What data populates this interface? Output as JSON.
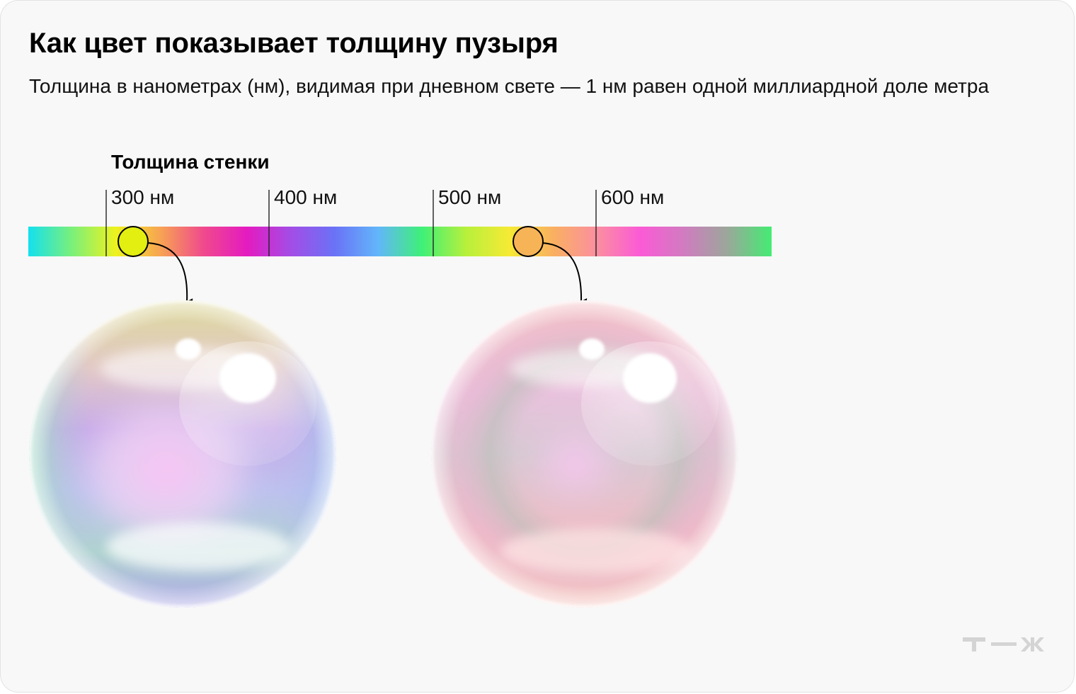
{
  "header": {
    "title": "Как цвет показывает толщину пузыря",
    "subtitle": "Толщина в нанометрах (нм), видимая при дневном свете — 1 нм равен одной миллиардной доле метра"
  },
  "scale": {
    "label": "Толщина стенки",
    "ticks": [
      "300 нм",
      "400 нм",
      "500 нм",
      "600 нм"
    ],
    "gradient_colors": [
      "#14e0ee",
      "#7bf07a",
      "#eef21e",
      "#f7a552",
      "#f04a8c",
      "#e41bc0",
      "#a34de6",
      "#6a72f6",
      "#62b6fa",
      "#3ef078",
      "#b6f03c",
      "#f6ea34",
      "#f9b060",
      "#fb8fa0",
      "#fb5ad6",
      "#d07cc0",
      "#9aa89a",
      "#44ec72"
    ]
  },
  "markers": [
    {
      "name": "thin",
      "color": "#e2ef10"
    },
    {
      "name": "thick",
      "color": "#f7b457"
    }
  ],
  "logo": {
    "text": "т—ж",
    "color": "#d4d4d4"
  }
}
